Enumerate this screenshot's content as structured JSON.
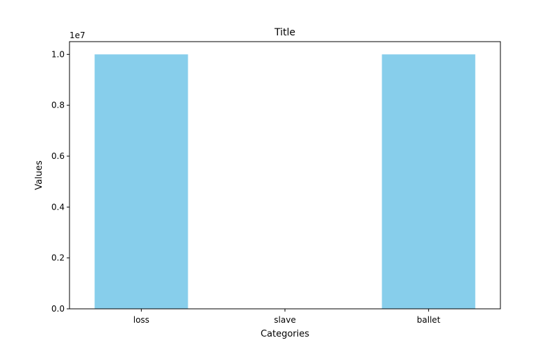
{
  "chart_data": {
    "type": "bar",
    "title": "Title",
    "xlabel": "Categories",
    "ylabel": "Values",
    "categories": [
      "loss",
      "slave",
      "ballet"
    ],
    "values": [
      10000000,
      0,
      10000000
    ],
    "ylim": [
      0,
      10500000
    ],
    "y_offset_label": "1e7",
    "y_ticks": [
      0,
      2000000,
      4000000,
      6000000,
      8000000,
      10000000
    ],
    "y_tick_labels": [
      "0.0",
      "0.2",
      "0.4",
      "0.6",
      "0.8",
      "1.0"
    ],
    "bar_color": "#87ceeb",
    "grid": false,
    "legend": "none"
  }
}
